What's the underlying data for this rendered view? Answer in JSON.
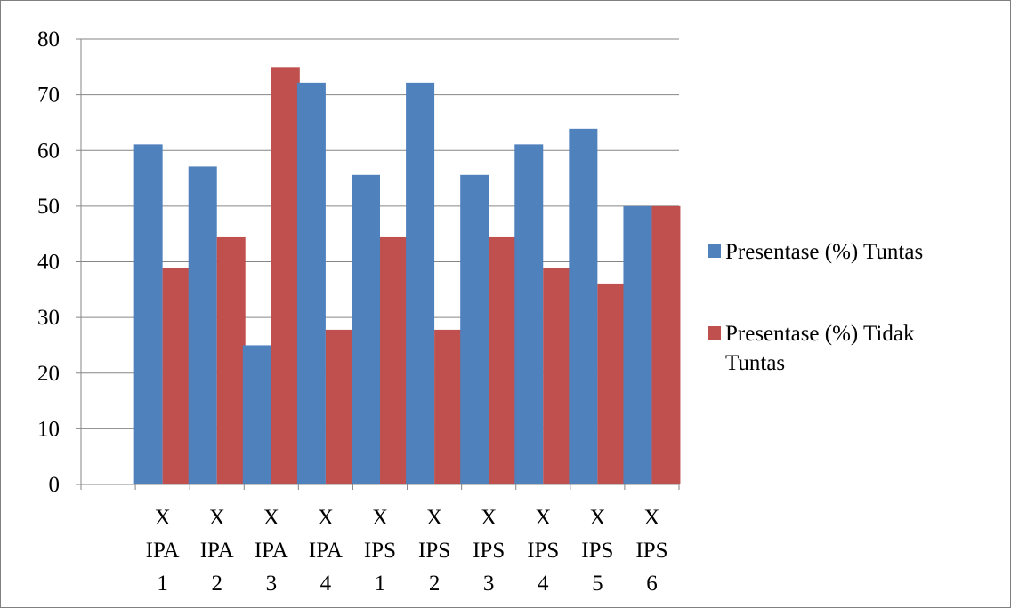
{
  "chart_data": {
    "type": "bar",
    "categories": [
      [
        "X",
        "",
        ""
      ],
      [
        "X",
        "IPA",
        "1"
      ],
      [
        "X",
        "IPA",
        "2"
      ],
      [
        "X",
        "IPA",
        "3"
      ],
      [
        "X",
        "IPA",
        "4"
      ],
      [
        "X",
        "IPS",
        "1"
      ],
      [
        "X",
        "IPS",
        "2"
      ],
      [
        "X",
        "IPS",
        "3"
      ],
      [
        "X",
        "IPS",
        "4"
      ],
      [
        "X",
        "IPS",
        "5"
      ],
      [
        "X",
        "IPS",
        "6"
      ]
    ],
    "series": [
      {
        "name": "Presentase (%) Tuntas",
        "legend_lines": [
          "Presentase (%) Tuntas"
        ],
        "color": "#4f81bd",
        "values": [
          null,
          61.1,
          57.1,
          25.0,
          72.2,
          55.6,
          72.2,
          55.6,
          61.1,
          63.9,
          50.0
        ]
      },
      {
        "name": "Presentase (%) Tidak Tuntas",
        "legend_lines": [
          "Presentase (%) Tidak",
          "Tuntas"
        ],
        "color": "#c0504d",
        "values": [
          null,
          38.9,
          44.4,
          75.0,
          27.8,
          44.4,
          27.8,
          44.4,
          38.9,
          36.1,
          50.0
        ]
      }
    ],
    "ylim": [
      0,
      80
    ],
    "yticks": [
      0,
      10,
      20,
      30,
      40,
      50,
      60,
      70,
      80
    ],
    "grid": true,
    "legend_position": "right",
    "axis_color": "#868686",
    "grid_color": "#868686"
  }
}
